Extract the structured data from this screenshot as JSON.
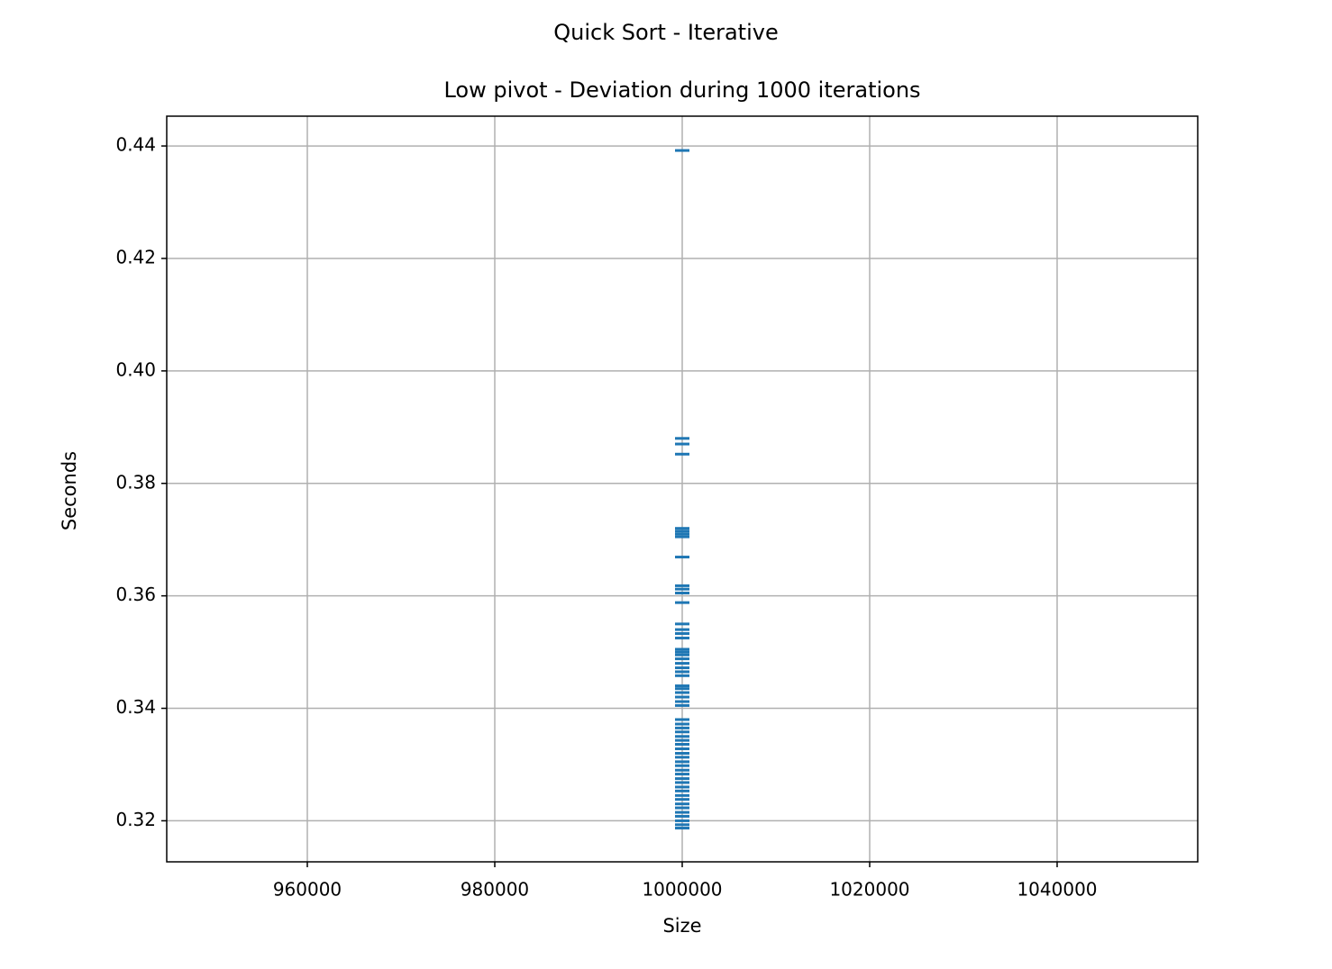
{
  "chart_data": {
    "type": "scatter",
    "suptitle": "Quick Sort - Iterative",
    "title": "Low pivot - Deviation during 1000 iterations",
    "x_label": "Size",
    "y_label": "Seconds",
    "xlim": [
      945000,
      1055000
    ],
    "ylim": [
      0.3127,
      0.4453
    ],
    "xticks": [
      960000,
      980000,
      1000000,
      1020000,
      1040000
    ],
    "yticks": [
      0.32,
      0.34,
      0.36,
      0.38,
      {
        "value": 0.4,
        "label": "0.40"
      },
      0.42,
      0.44
    ],
    "grid": true,
    "marker": "_",
    "color": "#1f77b4",
    "x": [
      1000000,
      1000000,
      1000000,
      1000000,
      1000000,
      1000000,
      1000000,
      1000000,
      1000000,
      1000000,
      1000000,
      1000000,
      1000000,
      1000000,
      1000000,
      1000000,
      1000000,
      1000000,
      1000000,
      1000000,
      1000000,
      1000000,
      1000000,
      1000000,
      1000000,
      1000000,
      1000000,
      1000000,
      1000000,
      1000000,
      1000000,
      1000000,
      1000000,
      1000000,
      1000000,
      1000000,
      1000000,
      1000000,
      1000000,
      1000000,
      1000000,
      1000000,
      1000000,
      1000000,
      1000000,
      1000000,
      1000000,
      1000000,
      1000000,
      1000000,
      1000000,
      1000000,
      1000000,
      1000000,
      1000000,
      1000000,
      1000000,
      1000000
    ],
    "values": [
      0.4392,
      0.388,
      0.387,
      0.3852,
      0.372,
      0.3715,
      0.371,
      0.3705,
      0.3669,
      0.3618,
      0.3612,
      0.3605,
      0.3588,
      0.355,
      0.354,
      0.3533,
      0.3525,
      0.3505,
      0.35,
      0.3495,
      0.3488,
      0.348,
      0.3472,
      0.3465,
      0.3458,
      0.344,
      0.3435,
      0.3428,
      0.342,
      0.3412,
      0.3405,
      0.338,
      0.3372,
      0.3365,
      0.3358,
      0.335,
      0.3343,
      0.3336,
      0.3328,
      0.332,
      0.3313,
      0.3305,
      0.3298,
      0.329,
      0.3283,
      0.3275,
      0.3268,
      0.326,
      0.3253,
      0.3245,
      0.3238,
      0.323,
      0.3223,
      0.3215,
      0.3208,
      0.32,
      0.3193,
      0.3187
    ]
  }
}
